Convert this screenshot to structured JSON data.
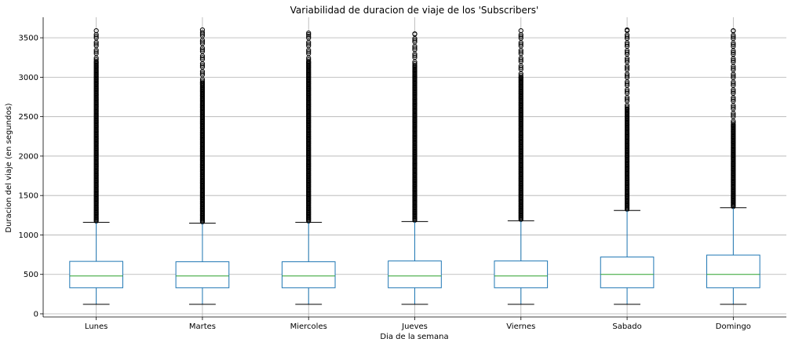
{
  "chart_data": {
    "type": "box",
    "title": "Variabilidad de duracion de viaje de los 'Subscribers'",
    "xlabel": "Dia de la semana",
    "ylabel": "Duracion del viaje (en segundos)",
    "ylim": [
      -40,
      3760
    ],
    "yticks": [
      0,
      500,
      1000,
      1500,
      2000,
      2500,
      3000,
      3500
    ],
    "grid": true,
    "categories": [
      "Lunes",
      "Martes",
      "Miercoles",
      "Jueves",
      "Viernes",
      "Sabado",
      "Domingo"
    ],
    "series": [
      {
        "whisker_low": 120,
        "q1": 330,
        "median": 480,
        "q3": 665,
        "whisker_high": 1160,
        "outlier_max": 3590,
        "outlier_gap_start": 3200
      },
      {
        "whisker_low": 120,
        "q1": 330,
        "median": 480,
        "q3": 660,
        "whisker_high": 1150,
        "outlier_max": 3600,
        "outlier_gap_start": 2930
      },
      {
        "whisker_low": 120,
        "q1": 330,
        "median": 480,
        "q3": 660,
        "whisker_high": 1160,
        "outlier_max": 3560,
        "outlier_gap_start": 3200
      },
      {
        "whisker_low": 120,
        "q1": 330,
        "median": 480,
        "q3": 670,
        "whisker_high": 1170,
        "outlier_max": 3550,
        "outlier_gap_start": 3150
      },
      {
        "whisker_low": 120,
        "q1": 330,
        "median": 480,
        "q3": 670,
        "whisker_high": 1180,
        "outlier_max": 3590,
        "outlier_gap_start": 3000
      },
      {
        "whisker_low": 120,
        "q1": 330,
        "median": 500,
        "q3": 720,
        "whisker_high": 1310,
        "outlier_max": 3600,
        "outlier_gap_start": 2600
      },
      {
        "whisker_low": 120,
        "q1": 330,
        "median": 500,
        "q3": 745,
        "whisker_high": 1345,
        "outlier_max": 3590,
        "outlier_gap_start": 2400
      }
    ],
    "colors": {
      "box": "#1f77b4",
      "median": "#2ca02c",
      "grid": "#b0b0b0",
      "outlier": "#000000"
    }
  }
}
